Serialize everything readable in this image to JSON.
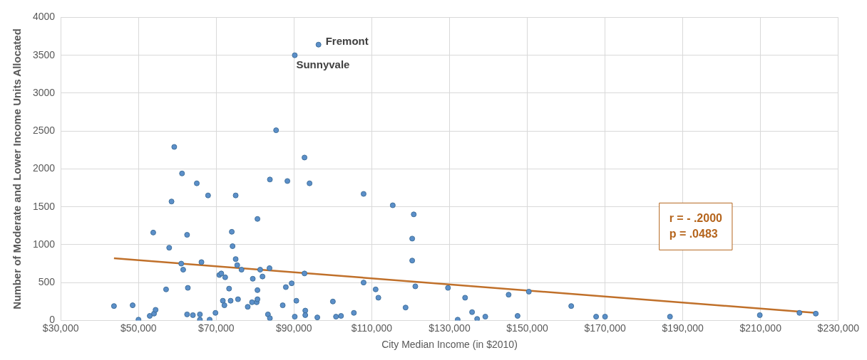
{
  "chart_data": {
    "type": "scatter",
    "xlabel": "City Median Income (in $2010)",
    "ylabel": "Number of Moderate and Lower Income Units Allocated",
    "xlim": [
      30000,
      230000
    ],
    "xticks": [
      {
        "value": 30000,
        "label": "$30,000"
      },
      {
        "value": 50000,
        "label": "$50,000"
      },
      {
        "value": 70000,
        "label": "$70,000"
      },
      {
        "value": 90000,
        "label": "$90,000"
      },
      {
        "value": 110000,
        "label": "$110,000"
      },
      {
        "value": 130000,
        "label": "$130,000"
      },
      {
        "value": 150000,
        "label": "$150,000"
      },
      {
        "value": 170000,
        "label": "$170,000"
      },
      {
        "value": 190000,
        "label": "$190,000"
      },
      {
        "value": 210000,
        "label": "$210,000"
      },
      {
        "value": 230000,
        "label": "$230,000"
      }
    ],
    "ylim": [
      0,
      4000
    ],
    "yticks": [
      0,
      500,
      1000,
      1500,
      2000,
      2500,
      3000,
      3500,
      4000
    ],
    "grid": true,
    "series": [
      {
        "marker": "circle",
        "color": "#5b8fc9",
        "x": [
          43700,
          48500,
          50000,
          52900,
          54000,
          54400,
          53800,
          57100,
          57900,
          58500,
          59200,
          61200,
          61000,
          61500,
          62500,
          62700,
          62500,
          64000,
          65000,
          65800,
          65800,
          66200,
          67900,
          68300,
          69800,
          70800,
          71300,
          72300,
          73300,
          71700,
          72100,
          73700,
          75600,
          74000,
          74200,
          75000,
          75000,
          75400,
          76500,
          78100,
          79200,
          79400,
          80400,
          80600,
          80600,
          80600,
          81300,
          81900,
          83300,
          83800,
          83700,
          85400,
          83800,
          87100,
          87900,
          88300,
          89400,
          90600,
          90200,
          92700,
          92900,
          92900,
          92700,
          94000,
          96000,
          96300,
          90200,
          107900,
          115400,
          120800,
          120400,
          120400,
          121200,
          107900,
          111000,
          111700,
          118700,
          105400,
          100000,
          100800,
          102100,
          129600,
          132100,
          134000,
          135800,
          137100,
          139200,
          145200,
          147500,
          150400,
          161300,
          167700,
          170000,
          186700,
          209800,
          220000,
          224200
        ],
        "values": [
          190,
          200,
          10,
          60,
          90,
          140,
          1160,
          410,
          960,
          1570,
          2290,
          1940,
          750,
          670,
          1130,
          430,
          80,
          70,
          1810,
          80,
          10,
          770,
          1650,
          10,
          100,
          600,
          620,
          570,
          420,
          260,
          200,
          260,
          280,
          1170,
          980,
          810,
          1650,
          730,
          670,
          180,
          240,
          550,
          240,
          280,
          400,
          1340,
          670,
          580,
          80,
          30,
          690,
          2510,
          1860,
          200,
          440,
          1840,
          490,
          260,
          50,
          2150,
          130,
          70,
          620,
          1810,
          40,
          3640,
          3500,
          1670,
          1520,
          1400,
          1080,
          790,
          450,
          500,
          410,
          300,
          170,
          100,
          250,
          50,
          60,
          430,
          10,
          300,
          110,
          20,
          50,
          340,
          60,
          380,
          190,
          50,
          50,
          50,
          70,
          100,
          90
        ]
      },
      {
        "type": "line",
        "marker": "none",
        "color": "#c0702a",
        "x": [
          43700,
          224200
        ],
        "values": [
          820,
          100
        ]
      }
    ],
    "annotations": [
      {
        "text": "Fremont",
        "x": 96300,
        "y": 3640
      },
      {
        "text": "Sunnyvale",
        "x": 90200,
        "y": 3500
      },
      "r = - .2000",
      "p = .0483"
    ]
  }
}
